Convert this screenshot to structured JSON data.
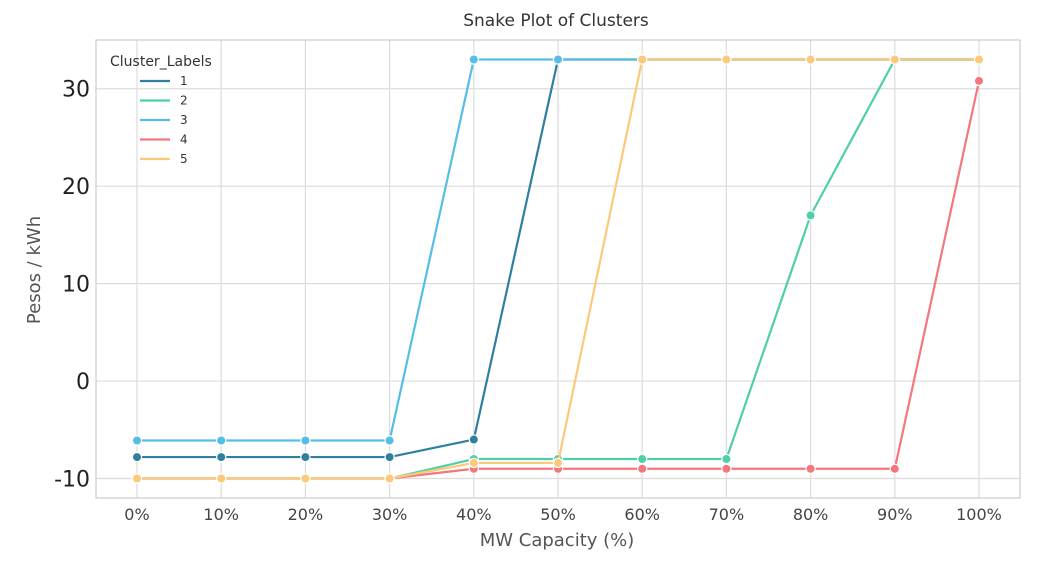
{
  "chart_data": {
    "type": "line",
    "title": "Snake Plot of Clusters",
    "xlabel": "MW Capacity (%)",
    "ylabel": "Pesos / kWh",
    "categories": [
      "0%",
      "10%",
      "20%",
      "30%",
      "40%",
      "50%",
      "60%",
      "70%",
      "80%",
      "90%",
      "100%"
    ],
    "yticks": [
      30,
      20,
      10,
      0,
      -10
    ],
    "ylim": [
      -12,
      35
    ],
    "grid": true,
    "legend": {
      "title": "Cluster_Labels",
      "placement": "top-left"
    },
    "series": [
      {
        "name": "1",
        "color": "#2f7f9e",
        "values": [
          -7.8,
          -7.8,
          -7.8,
          -7.8,
          -6.0,
          33.0,
          33.0,
          33.0,
          33.0,
          33.0,
          33.0
        ]
      },
      {
        "name": "2",
        "color": "#4ecfa9",
        "values": [
          -10.0,
          -10.0,
          -10.0,
          -10.0,
          -8.0,
          -8.0,
          -8.0,
          -8.0,
          17.0,
          33.0,
          33.0
        ]
      },
      {
        "name": "3",
        "color": "#56bde6",
        "values": [
          -6.1,
          -6.1,
          -6.1,
          -6.1,
          33.0,
          33.0,
          33.0,
          33.0,
          33.0,
          33.0,
          33.0
        ]
      },
      {
        "name": "4",
        "color": "#f4777d",
        "values": [
          -10.0,
          -10.0,
          -10.0,
          -10.0,
          -9.0,
          -9.0,
          -9.0,
          -9.0,
          -9.0,
          -9.0,
          30.8
        ]
      },
      {
        "name": "5",
        "color": "#fcc97a",
        "values": [
          -10.0,
          -10.0,
          -10.0,
          -10.0,
          -8.4,
          -8.4,
          33.0,
          33.0,
          33.0,
          33.0,
          33.0
        ]
      }
    ]
  }
}
